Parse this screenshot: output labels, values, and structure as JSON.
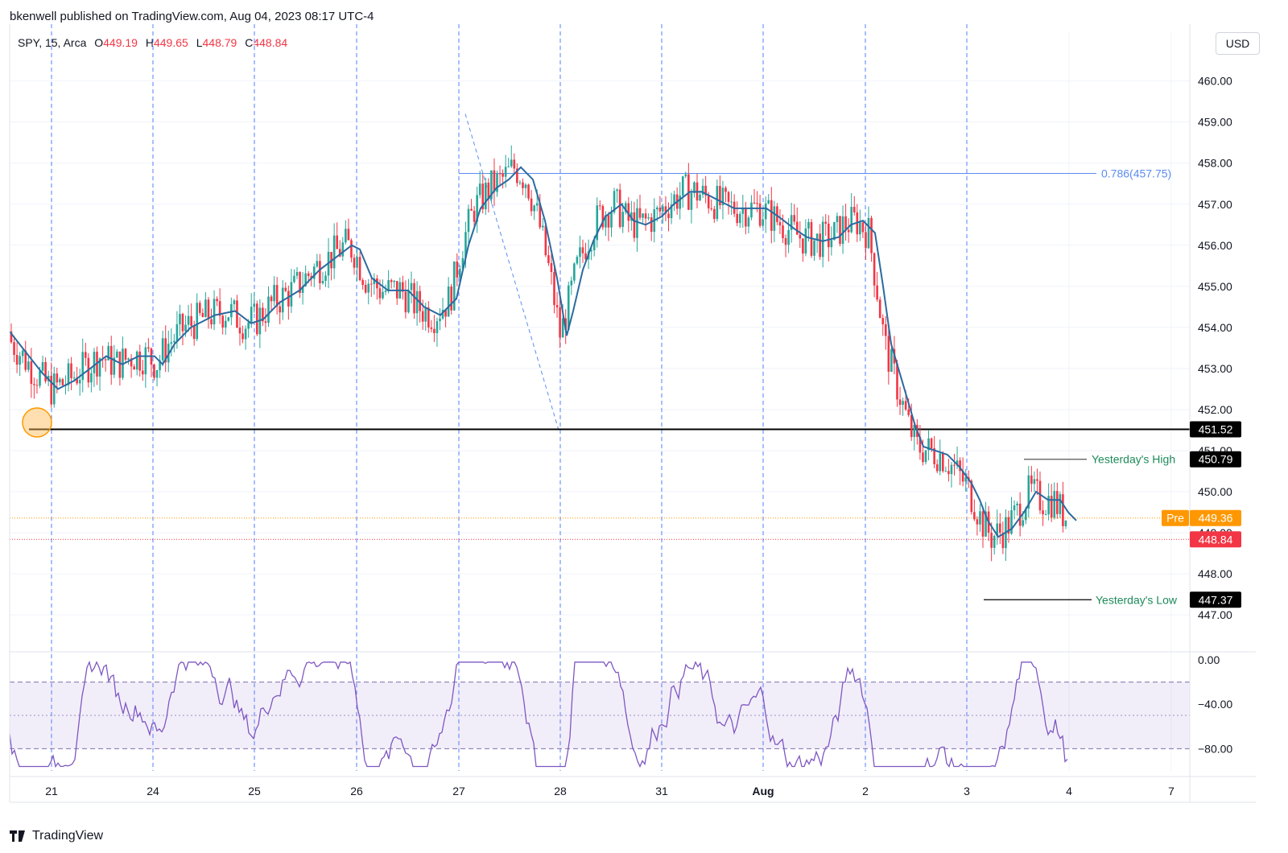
{
  "header": {
    "publisher": "bkenwell published on TradingView.com, Aug 04, 2023 08:17 UTC-4"
  },
  "legend": {
    "symbol": "SPY, 15, Arca",
    "open_label": "O",
    "open": "449.19",
    "high_label": "H",
    "high": "449.65",
    "low_label": "L",
    "low": "448.79",
    "close_label": "C",
    "close": "448.84"
  },
  "currency": "USD",
  "footer": {
    "brand": "TradingView"
  },
  "colors": {
    "up": "#26a69a",
    "down": "#f23645",
    "ema": "#2c6aa0",
    "rsi": "#7e57c2",
    "fib": "#5b8def",
    "session": "#2962ff"
  },
  "chart_data": [
    {
      "type": "candlestick",
      "title": "SPY, 15, Arca",
      "x_tick_labels": [
        "21",
        "24",
        "25",
        "26",
        "27",
        "28",
        "31",
        "Aug",
        "2",
        "3",
        "4",
        "7"
      ],
      "y_tick_labels": [
        "460.00",
        "459.00",
        "458.00",
        "457.00",
        "456.00",
        "455.00",
        "454.00",
        "453.00",
        "452.00",
        "451.00",
        "450.00",
        "449.00",
        "448.00",
        "447.00"
      ],
      "ylim": [
        446.2,
        460.6
      ],
      "price_levels": [
        {
          "name": "support",
          "value": 451.52,
          "label": "451.52"
        },
        {
          "name": "yesterdays_high",
          "value": 450.79,
          "label": "450.79",
          "text": "Yesterday's High"
        },
        {
          "name": "yesterdays_low",
          "value": 447.37,
          "label": "447.37",
          "text": "Yesterday's Low"
        },
        {
          "name": "premarket",
          "value": 449.36,
          "label": "449.36",
          "text": "Pre"
        },
        {
          "name": "last",
          "value": 448.84,
          "label": "448.84"
        }
      ],
      "fib_level": {
        "ratio": 0.786,
        "value": 457.75,
        "label": "0.786(457.75)"
      },
      "ema_path": [
        [
          0,
          453.9
        ],
        [
          20,
          453.4
        ],
        [
          40,
          452.9
        ],
        [
          60,
          452.5
        ],
        [
          80,
          452.7
        ],
        [
          100,
          453.0
        ],
        [
          120,
          453.3
        ],
        [
          140,
          453.1
        ],
        [
          160,
          453.3
        ],
        [
          180,
          453.3
        ],
        [
          190,
          453.1
        ],
        [
          205,
          453.6
        ],
        [
          225,
          454.0
        ],
        [
          255,
          454.3
        ],
        [
          280,
          454.4
        ],
        [
          300,
          454.1
        ],
        [
          315,
          454.2
        ],
        [
          335,
          454.6
        ],
        [
          360,
          454.9
        ],
        [
          385,
          455.4
        ],
        [
          405,
          455.7
        ],
        [
          425,
          456.0
        ],
        [
          435,
          455.9
        ],
        [
          450,
          455.2
        ],
        [
          470,
          454.9
        ],
        [
          495,
          454.9
        ],
        [
          515,
          454.5
        ],
        [
          535,
          454.3
        ],
        [
          555,
          454.7
        ],
        [
          570,
          456.0
        ],
        [
          585,
          456.9
        ],
        [
          605,
          457.4
        ],
        [
          620,
          457.6
        ],
        [
          635,
          457.9
        ],
        [
          650,
          457.6
        ],
        [
          665,
          456.6
        ],
        [
          680,
          455.2
        ],
        [
          692,
          453.8
        ],
        [
          700,
          454.4
        ],
        [
          712,
          455.4
        ],
        [
          725,
          456.1
        ],
        [
          740,
          456.7
        ],
        [
          760,
          457.0
        ],
        [
          775,
          456.6
        ],
        [
          790,
          456.5
        ],
        [
          810,
          456.7
        ],
        [
          825,
          457.0
        ],
        [
          845,
          457.3
        ],
        [
          860,
          457.3
        ],
        [
          880,
          457.1
        ],
        [
          900,
          456.9
        ],
        [
          920,
          456.9
        ],
        [
          940,
          456.9
        ],
        [
          955,
          456.7
        ],
        [
          975,
          456.4
        ],
        [
          990,
          456.2
        ],
        [
          1010,
          456.1
        ],
        [
          1030,
          456.2
        ],
        [
          1045,
          456.5
        ],
        [
          1060,
          456.6
        ],
        [
          1075,
          456.3
        ],
        [
          1085,
          455.0
        ],
        [
          1095,
          453.6
        ],
        [
          1110,
          452.6
        ],
        [
          1125,
          451.6
        ],
        [
          1135,
          451.1
        ],
        [
          1150,
          451.0
        ],
        [
          1165,
          450.9
        ],
        [
          1180,
          450.6
        ],
        [
          1195,
          450.2
        ],
        [
          1205,
          449.8
        ],
        [
          1215,
          449.3
        ],
        [
          1228,
          448.9
        ],
        [
          1245,
          449.1
        ],
        [
          1260,
          449.5
        ],
        [
          1275,
          450.0
        ],
        [
          1290,
          449.8
        ],
        [
          1305,
          449.8
        ],
        [
          1315,
          449.5
        ],
        [
          1325,
          449.3
        ]
      ],
      "rsi_oscillator": {
        "ylim": [
          -100,
          0
        ],
        "y_tick_labels": [
          "0.00",
          "−40.00",
          "−80.00"
        ],
        "band": [
          -80,
          -20
        ]
      }
    }
  ]
}
